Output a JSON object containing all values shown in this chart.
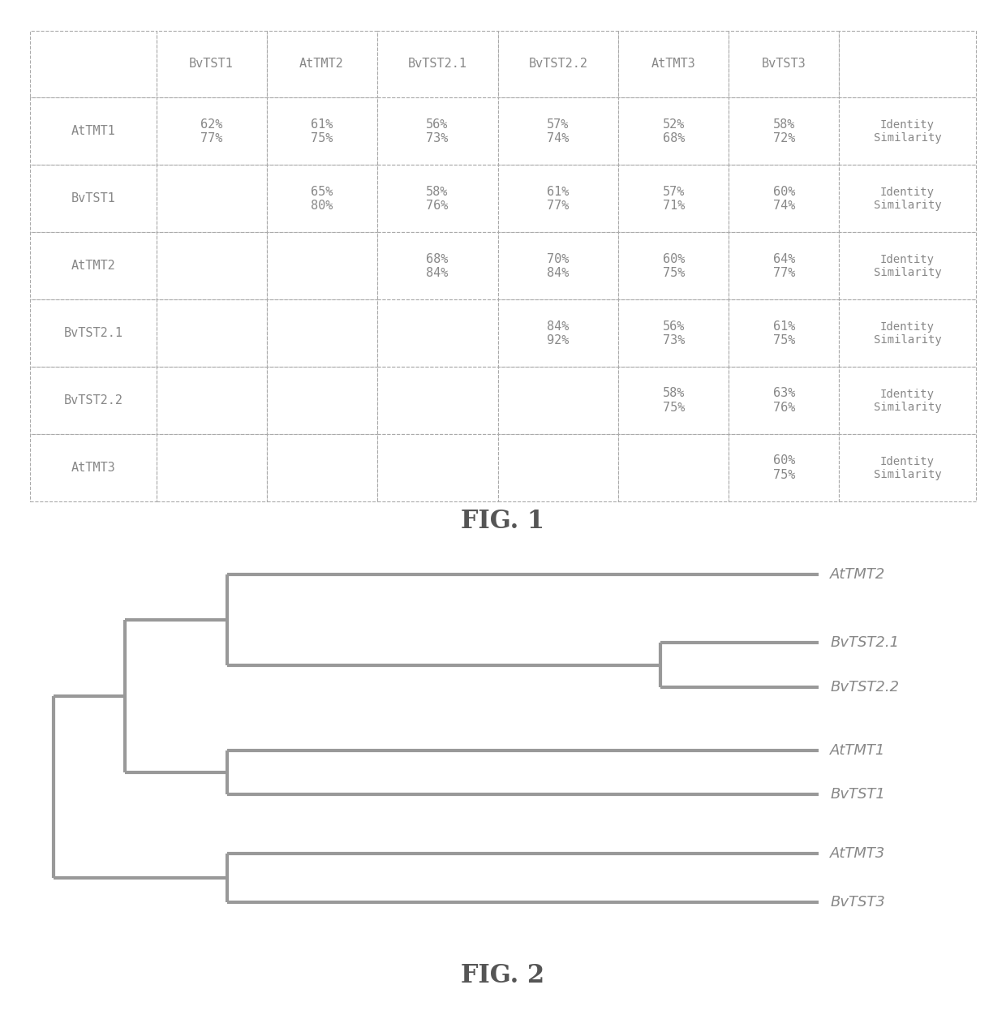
{
  "fig1": {
    "col_headers": [
      "",
      "BvTST1",
      "AtTMT2",
      "BvTST2.1",
      "BvTST2.2",
      "AtTMT3",
      "BvTST3",
      ""
    ],
    "row_headers": [
      "AtTMT1",
      "BvTST1",
      "AtTMT2",
      "BvTST2.1",
      "BvTST2.2",
      "AtTMT3"
    ],
    "cells": [
      [
        "62%\n77%",
        "61%\n75%",
        "56%\n73%",
        "57%\n74%",
        "52%\n68%",
        "58%\n72%",
        "Identity\nSimilarity"
      ],
      [
        "",
        "65%\n80%",
        "58%\n76%",
        "61%\n77%",
        "57%\n71%",
        "60%\n74%",
        "Identity\nSimilarity"
      ],
      [
        "",
        "",
        "68%\n84%",
        "70%\n84%",
        "60%\n75%",
        "64%\n77%",
        "Identity\nSimilarity"
      ],
      [
        "",
        "",
        "",
        "84%\n92%",
        "56%\n73%",
        "61%\n75%",
        "Identity\nSimilarity"
      ],
      [
        "",
        "",
        "",
        "",
        "58%\n75%",
        "63%\n76%",
        "Identity\nSimilarity"
      ],
      [
        "",
        "",
        "",
        "",
        "",
        "60%\n75%",
        "Identity\nSimilarity"
      ]
    ],
    "title": "FIG. 1"
  },
  "fig2": {
    "title": "FIG. 2",
    "line_color": "#999999",
    "line_width": 3.0,
    "label_color": "#888888",
    "font_size_tree": 13
  },
  "background_color": "#ffffff",
  "text_color": "#888888",
  "border_color": "#aaaaaa",
  "font_size_table": 11,
  "font_size_header": 11,
  "font_size_title": 22
}
